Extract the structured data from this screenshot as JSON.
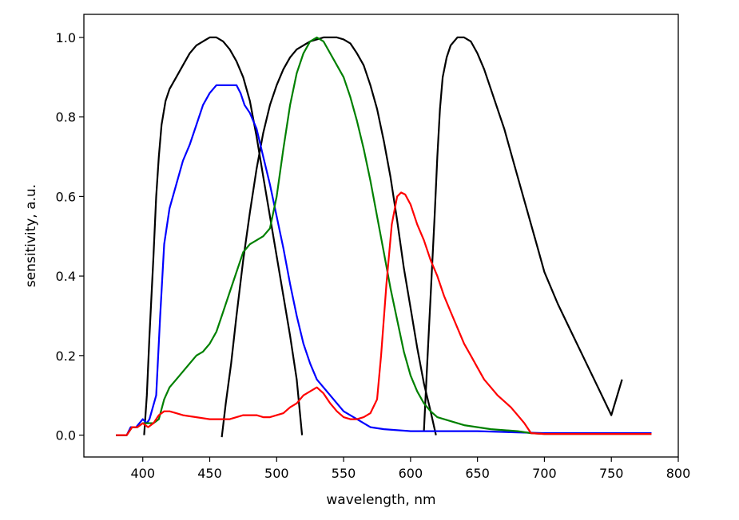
{
  "chart_data": {
    "type": "line",
    "xlabel": "wavelength, nm",
    "ylabel": "sensitivity, a.u.",
    "xlim": [
      356,
      800
    ],
    "ylim": [
      -0.055,
      1.058
    ],
    "xticks": [
      400,
      450,
      500,
      550,
      600,
      650,
      700,
      750,
      800
    ],
    "yticks": [
      0.0,
      0.2,
      0.4,
      0.6,
      0.8,
      1.0
    ],
    "ytick_labels": [
      "0.0",
      "0.2",
      "0.4",
      "0.6",
      "0.8",
      "1.0"
    ],
    "grid": false,
    "legend": false,
    "series": [
      {
        "color": "#000000",
        "points": [
          [
            401,
            0.0
          ],
          [
            403,
            0.1
          ],
          [
            405,
            0.25
          ],
          [
            408,
            0.45
          ],
          [
            410,
            0.6
          ],
          [
            412,
            0.7
          ],
          [
            414,
            0.78
          ],
          [
            417,
            0.84
          ],
          [
            420,
            0.87
          ],
          [
            425,
            0.9
          ],
          [
            430,
            0.93
          ],
          [
            435,
            0.96
          ],
          [
            440,
            0.98
          ],
          [
            445,
            0.99
          ],
          [
            450,
            1.0
          ],
          [
            455,
            1.0
          ],
          [
            460,
            0.99
          ],
          [
            465,
            0.97
          ],
          [
            470,
            0.94
          ],
          [
            475,
            0.9
          ],
          [
            480,
            0.84
          ],
          [
            485,
            0.75
          ],
          [
            490,
            0.65
          ],
          [
            495,
            0.55
          ],
          [
            500,
            0.45
          ],
          [
            505,
            0.35
          ],
          [
            510,
            0.25
          ],
          [
            515,
            0.14
          ],
          [
            519,
            0.0
          ]
        ]
      },
      {
        "color": "#000000",
        "points": [
          [
            459,
            -0.005
          ],
          [
            462,
            0.08
          ],
          [
            466,
            0.18
          ],
          [
            470,
            0.3
          ],
          [
            475,
            0.44
          ],
          [
            480,
            0.56
          ],
          [
            485,
            0.67
          ],
          [
            490,
            0.76
          ],
          [
            495,
            0.83
          ],
          [
            500,
            0.88
          ],
          [
            505,
            0.92
          ],
          [
            510,
            0.95
          ],
          [
            515,
            0.97
          ],
          [
            520,
            0.98
          ],
          [
            525,
            0.99
          ],
          [
            530,
            0.995
          ],
          [
            535,
            1.0
          ],
          [
            540,
            1.0
          ],
          [
            545,
            1.0
          ],
          [
            550,
            0.995
          ],
          [
            555,
            0.985
          ],
          [
            560,
            0.96
          ],
          [
            565,
            0.93
          ],
          [
            570,
            0.88
          ],
          [
            575,
            0.82
          ],
          [
            580,
            0.74
          ],
          [
            585,
            0.65
          ],
          [
            590,
            0.54
          ],
          [
            595,
            0.42
          ],
          [
            600,
            0.32
          ],
          [
            605,
            0.22
          ],
          [
            610,
            0.13
          ],
          [
            615,
            0.06
          ],
          [
            619,
            0.0
          ]
        ]
      },
      {
        "color": "#000000",
        "points": [
          [
            610,
            0.01
          ],
          [
            612,
            0.15
          ],
          [
            615,
            0.35
          ],
          [
            618,
            0.55
          ],
          [
            620,
            0.7
          ],
          [
            622,
            0.82
          ],
          [
            624,
            0.9
          ],
          [
            627,
            0.95
          ],
          [
            630,
            0.98
          ],
          [
            635,
            1.0
          ],
          [
            640,
            1.0
          ],
          [
            645,
            0.99
          ],
          [
            650,
            0.96
          ],
          [
            655,
            0.92
          ],
          [
            660,
            0.87
          ],
          [
            665,
            0.82
          ],
          [
            670,
            0.77
          ],
          [
            675,
            0.71
          ],
          [
            680,
            0.65
          ],
          [
            685,
            0.59
          ],
          [
            690,
            0.53
          ],
          [
            695,
            0.47
          ],
          [
            700,
            0.41
          ],
          [
            710,
            0.33
          ],
          [
            720,
            0.26
          ],
          [
            730,
            0.19
          ],
          [
            740,
            0.12
          ],
          [
            750,
            0.05
          ],
          [
            758,
            0.14
          ]
        ]
      },
      {
        "color": "#0000ff",
        "points": [
          [
            380,
            0.0
          ],
          [
            388,
            0.0
          ],
          [
            391,
            0.02
          ],
          [
            395,
            0.02
          ],
          [
            400,
            0.04
          ],
          [
            403,
            0.03
          ],
          [
            405,
            0.04
          ],
          [
            410,
            0.1
          ],
          [
            413,
            0.3
          ],
          [
            416,
            0.48
          ],
          [
            420,
            0.57
          ],
          [
            425,
            0.63
          ],
          [
            430,
            0.69
          ],
          [
            435,
            0.73
          ],
          [
            440,
            0.78
          ],
          [
            445,
            0.83
          ],
          [
            450,
            0.86
          ],
          [
            455,
            0.88
          ],
          [
            460,
            0.88
          ],
          [
            465,
            0.88
          ],
          [
            470,
            0.88
          ],
          [
            473,
            0.86
          ],
          [
            476,
            0.83
          ],
          [
            480,
            0.81
          ],
          [
            485,
            0.77
          ],
          [
            490,
            0.7
          ],
          [
            495,
            0.63
          ],
          [
            500,
            0.55
          ],
          [
            505,
            0.47
          ],
          [
            510,
            0.38
          ],
          [
            515,
            0.3
          ],
          [
            520,
            0.23
          ],
          [
            525,
            0.18
          ],
          [
            530,
            0.14
          ],
          [
            535,
            0.12
          ],
          [
            540,
            0.1
          ],
          [
            545,
            0.08
          ],
          [
            550,
            0.06
          ],
          [
            560,
            0.04
          ],
          [
            570,
            0.02
          ],
          [
            580,
            0.015
          ],
          [
            600,
            0.01
          ],
          [
            620,
            0.01
          ],
          [
            650,
            0.01
          ],
          [
            700,
            0.005
          ],
          [
            780,
            0.005
          ]
        ]
      },
      {
        "color": "#008000",
        "points": [
          [
            380,
            0.0
          ],
          [
            388,
            0.0
          ],
          [
            392,
            0.02
          ],
          [
            396,
            0.02
          ],
          [
            400,
            0.03
          ],
          [
            404,
            0.03
          ],
          [
            408,
            0.03
          ],
          [
            412,
            0.04
          ],
          [
            416,
            0.09
          ],
          [
            420,
            0.12
          ],
          [
            425,
            0.14
          ],
          [
            430,
            0.16
          ],
          [
            435,
            0.18
          ],
          [
            440,
            0.2
          ],
          [
            445,
            0.21
          ],
          [
            450,
            0.23
          ],
          [
            455,
            0.26
          ],
          [
            460,
            0.31
          ],
          [
            465,
            0.36
          ],
          [
            470,
            0.41
          ],
          [
            475,
            0.46
          ],
          [
            480,
            0.48
          ],
          [
            485,
            0.49
          ],
          [
            490,
            0.5
          ],
          [
            495,
            0.52
          ],
          [
            500,
            0.6
          ],
          [
            505,
            0.72
          ],
          [
            510,
            0.83
          ],
          [
            515,
            0.91
          ],
          [
            520,
            0.96
          ],
          [
            525,
            0.99
          ],
          [
            530,
            1.0
          ],
          [
            535,
            0.99
          ],
          [
            540,
            0.96
          ],
          [
            545,
            0.93
          ],
          [
            550,
            0.9
          ],
          [
            555,
            0.85
          ],
          [
            560,
            0.79
          ],
          [
            565,
            0.72
          ],
          [
            570,
            0.64
          ],
          [
            575,
            0.55
          ],
          [
            580,
            0.46
          ],
          [
            585,
            0.37
          ],
          [
            590,
            0.29
          ],
          [
            595,
            0.21
          ],
          [
            600,
            0.15
          ],
          [
            605,
            0.11
          ],
          [
            610,
            0.08
          ],
          [
            615,
            0.06
          ],
          [
            620,
            0.045
          ],
          [
            630,
            0.035
          ],
          [
            640,
            0.025
          ],
          [
            650,
            0.02
          ],
          [
            660,
            0.015
          ],
          [
            680,
            0.01
          ],
          [
            690,
            0.005
          ],
          [
            700,
            0.003
          ],
          [
            780,
            0.003
          ]
        ]
      },
      {
        "color": "#ff0000",
        "points": [
          [
            380,
            0.0
          ],
          [
            388,
            0.0
          ],
          [
            392,
            0.02
          ],
          [
            396,
            0.02
          ],
          [
            400,
            0.03
          ],
          [
            404,
            0.02
          ],
          [
            408,
            0.03
          ],
          [
            412,
            0.05
          ],
          [
            416,
            0.06
          ],
          [
            420,
            0.06
          ],
          [
            425,
            0.055
          ],
          [
            430,
            0.05
          ],
          [
            440,
            0.045
          ],
          [
            450,
            0.04
          ],
          [
            460,
            0.04
          ],
          [
            465,
            0.04
          ],
          [
            470,
            0.045
          ],
          [
            475,
            0.05
          ],
          [
            480,
            0.05
          ],
          [
            485,
            0.05
          ],
          [
            490,
            0.045
          ],
          [
            495,
            0.045
          ],
          [
            500,
            0.05
          ],
          [
            505,
            0.055
          ],
          [
            510,
            0.07
          ],
          [
            515,
            0.08
          ],
          [
            520,
            0.1
          ],
          [
            525,
            0.11
          ],
          [
            530,
            0.12
          ],
          [
            535,
            0.105
          ],
          [
            540,
            0.08
          ],
          [
            545,
            0.06
          ],
          [
            550,
            0.045
          ],
          [
            555,
            0.04
          ],
          [
            560,
            0.04
          ],
          [
            565,
            0.045
          ],
          [
            570,
            0.055
          ],
          [
            575,
            0.09
          ],
          [
            578,
            0.2
          ],
          [
            582,
            0.38
          ],
          [
            586,
            0.53
          ],
          [
            590,
            0.6
          ],
          [
            593,
            0.61
          ],
          [
            596,
            0.605
          ],
          [
            600,
            0.58
          ],
          [
            605,
            0.53
          ],
          [
            610,
            0.49
          ],
          [
            615,
            0.44
          ],
          [
            620,
            0.4
          ],
          [
            625,
            0.35
          ],
          [
            630,
            0.31
          ],
          [
            635,
            0.27
          ],
          [
            640,
            0.23
          ],
          [
            645,
            0.2
          ],
          [
            650,
            0.17
          ],
          [
            655,
            0.14
          ],
          [
            660,
            0.12
          ],
          [
            665,
            0.1
          ],
          [
            670,
            0.085
          ],
          [
            675,
            0.07
          ],
          [
            680,
            0.05
          ],
          [
            685,
            0.03
          ],
          [
            690,
            0.005
          ],
          [
            700,
            0.003
          ],
          [
            780,
            0.003
          ]
        ]
      }
    ]
  }
}
